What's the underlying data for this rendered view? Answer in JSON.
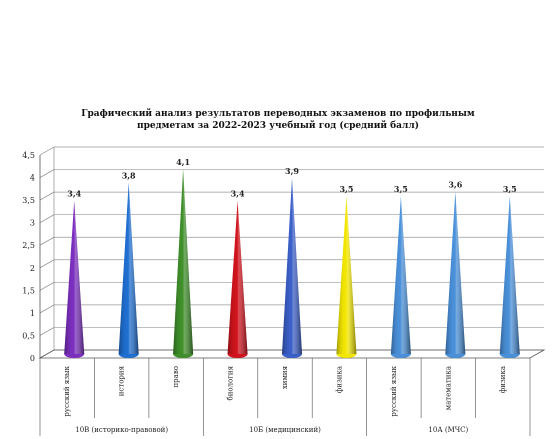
{
  "chart_data": {
    "type": "bar",
    "title_line1": "Графический анализ результатов переводных экзаменов по профильным",
    "title_line2": "предметам за 2022-2023 учебный год (средний балл)",
    "categories": [
      "русский язык",
      "история",
      "право",
      "биология",
      "химия",
      "физика",
      "русский язык",
      "математика",
      "физика"
    ],
    "values": [
      3.4,
      3.8,
      4.1,
      3.4,
      3.9,
      3.5,
      3.5,
      3.6,
      3.5
    ],
    "value_labels": [
      "3,4",
      "3,8",
      "4,1",
      "3,4",
      "3,9",
      "3,5",
      "3,5",
      "3,6",
      "3,5"
    ],
    "colors": [
      "#7b2fbe",
      "#1f6fd1",
      "#3f8f2a",
      "#d0141e",
      "#3a5fc8",
      "#f2e600",
      "#4a90d9",
      "#4a90d9",
      "#4a90d9"
    ],
    "groups": [
      {
        "label": "10В (историко-правовой)",
        "count": 3
      },
      {
        "label": "10Б (медицинский)",
        "count": 3
      },
      {
        "label": "10А (МЧС)",
        "count": 3
      }
    ],
    "y_ticks": [
      "0",
      "0,5",
      "1",
      "1,5",
      "2",
      "2,5",
      "3",
      "3,5",
      "4",
      "4,5"
    ],
    "ylim": [
      0,
      4.5
    ],
    "grid": true,
    "shape": "cone-3d"
  }
}
